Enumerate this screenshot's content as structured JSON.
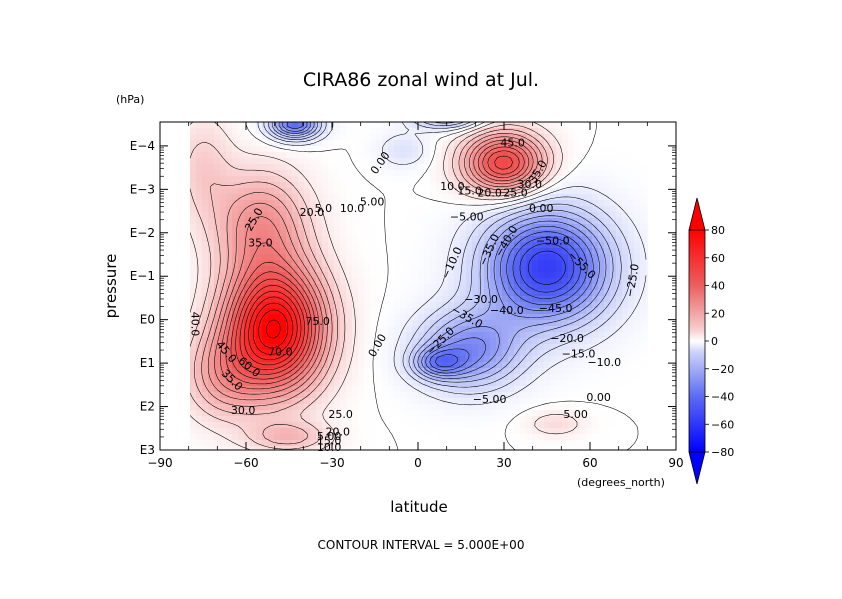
{
  "chart_data": {
    "type": "heatmap",
    "title": "CIRA86 zonal wind at Jul.",
    "xlabel": "latitude",
    "xunit": "(degrees_north)",
    "ylabel": "pressure",
    "yunit": "(hPa)",
    "x_range": [
      -90,
      90
    ],
    "x_ticks": [
      "−90",
      "−60",
      "−30",
      "0",
      "30",
      "60",
      "90"
    ],
    "y_ticks": [
      "E3",
      "E2",
      "E1",
      "E0",
      "E−1",
      "E−2",
      "E−3",
      "E−4"
    ],
    "colorbar": {
      "min": -80,
      "max": 80,
      "ticks": [
        "80",
        "60",
        "40",
        "20",
        "0",
        "−20",
        "−40",
        "−60",
        "−80"
      ],
      "extend": "both"
    },
    "footer": "CONTOUR INTERVAL = 5.000E+00",
    "features": [
      {
        "kind": "max",
        "lat": -50,
        "logp": 0.2,
        "value": 75
      },
      {
        "kind": "max",
        "lat": 30,
        "logp": -3.6,
        "value": 50
      },
      {
        "kind": "min",
        "lat": 48,
        "logp": -1.2,
        "value": -55
      },
      {
        "kind": "min",
        "lat": -43,
        "logp": -4.5,
        "value": -40
      }
    ],
    "contour_labels": [
      {
        "text": "0.00",
        "lat": -13,
        "logp": -3.6,
        "rot": -55
      },
      {
        "text": "5.00",
        "lat": -16,
        "logp": -2.7,
        "rot": 0
      },
      {
        "text": "10.0",
        "lat": -23,
        "logp": -2.55,
        "rot": 0
      },
      {
        "text": "5.0",
        "lat": -33,
        "logp": -2.55,
        "rot": 0
      },
      {
        "text": "20.0",
        "lat": -37,
        "logp": -2.45,
        "rot": 0
      },
      {
        "text": "25.0",
        "lat": -57,
        "logp": -2.3,
        "rot": -60
      },
      {
        "text": "35.0",
        "lat": -55,
        "logp": -1.75,
        "rot": 0
      },
      {
        "text": "40.0",
        "lat": -78,
        "logp": 0.1,
        "rot": 90
      },
      {
        "text": "45.0",
        "lat": -67,
        "logp": 0.75,
        "rot": 50
      },
      {
        "text": "60.0",
        "lat": -59,
        "logp": 1.1,
        "rot": 40
      },
      {
        "text": "70.0",
        "lat": -48,
        "logp": 0.75,
        "rot": 0
      },
      {
        "text": "75.0",
        "lat": -35,
        "logp": 0.05,
        "rot": 0
      },
      {
        "text": "35.0",
        "lat": -65,
        "logp": 1.4,
        "rot": 45
      },
      {
        "text": "30.0",
        "lat": -61,
        "logp": 2.1,
        "rot": 0
      },
      {
        "text": "25.0",
        "lat": -27,
        "logp": 2.2,
        "rot": 0
      },
      {
        "text": "20.0",
        "lat": -28,
        "logp": 2.6,
        "rot": 0
      },
      {
        "text": "15.0",
        "lat": -31,
        "logp": 2.8,
        "rot": 0
      },
      {
        "text": "10.0",
        "lat": -31,
        "logp": 2.95,
        "rot": 0
      },
      {
        "text": "5.00",
        "lat": -31,
        "logp": 2.7,
        "rot": 0
      },
      {
        "text": "0.00",
        "lat": -14,
        "logp": 0.6,
        "rot": -60
      },
      {
        "text": "10.0",
        "lat": 12,
        "logp": -3.05,
        "rot": 0
      },
      {
        "text": "15.0",
        "lat": 18,
        "logp": -2.95,
        "rot": 0
      },
      {
        "text": "20.0",
        "lat": 25,
        "logp": -2.9,
        "rot": 0
      },
      {
        "text": "25.0",
        "lat": 34,
        "logp": -2.9,
        "rot": 0
      },
      {
        "text": "30.0",
        "lat": 39,
        "logp": -3.1,
        "rot": 0
      },
      {
        "text": "35.0",
        "lat": 42,
        "logp": -3.4,
        "rot": -60
      },
      {
        "text": "45.0",
        "lat": 33,
        "logp": -4.05,
        "rot": 0
      },
      {
        "text": "0.00",
        "lat": 43,
        "logp": -2.55,
        "rot": 0
      },
      {
        "text": "−5.00",
        "lat": 17,
        "logp": -2.35,
        "rot": 0
      },
      {
        "text": "−10.0",
        "lat": 12,
        "logp": -1.3,
        "rot": -65
      },
      {
        "text": "−35.0",
        "lat": 25,
        "logp": -1.6,
        "rot": -65
      },
      {
        "text": "−40.0",
        "lat": 31,
        "logp": -1.8,
        "rot": -60
      },
      {
        "text": "−50.0",
        "lat": 47,
        "logp": -1.8,
        "rot": 0
      },
      {
        "text": "−55.0",
        "lat": 57,
        "logp": -1.25,
        "rot": 45
      },
      {
        "text": "−25.0",
        "lat": 75,
        "logp": -0.9,
        "rot": -80
      },
      {
        "text": "−25.0",
        "lat": 8,
        "logp": 0.5,
        "rot": -45
      },
      {
        "text": "−35.0",
        "lat": 17,
        "logp": -0.05,
        "rot": 30
      },
      {
        "text": "−30.0",
        "lat": 22,
        "logp": -0.45,
        "rot": 0
      },
      {
        "text": "−40.0",
        "lat": 31,
        "logp": -0.2,
        "rot": 0
      },
      {
        "text": "−45.0",
        "lat": 48,
        "logp": -0.25,
        "rot": 0
      },
      {
        "text": "−20.0",
        "lat": 52,
        "logp": 0.45,
        "rot": 0
      },
      {
        "text": "−15.0",
        "lat": 56,
        "logp": 0.8,
        "rot": 0
      },
      {
        "text": "−10.0",
        "lat": 65,
        "logp": 1.0,
        "rot": 0
      },
      {
        "text": "−5.00",
        "lat": 25,
        "logp": 1.85,
        "rot": 0
      },
      {
        "text": "0.00",
        "lat": 63,
        "logp": 1.8,
        "rot": 0
      },
      {
        "text": "5.00",
        "lat": 55,
        "logp": 2.2,
        "rot": 0
      }
    ]
  }
}
